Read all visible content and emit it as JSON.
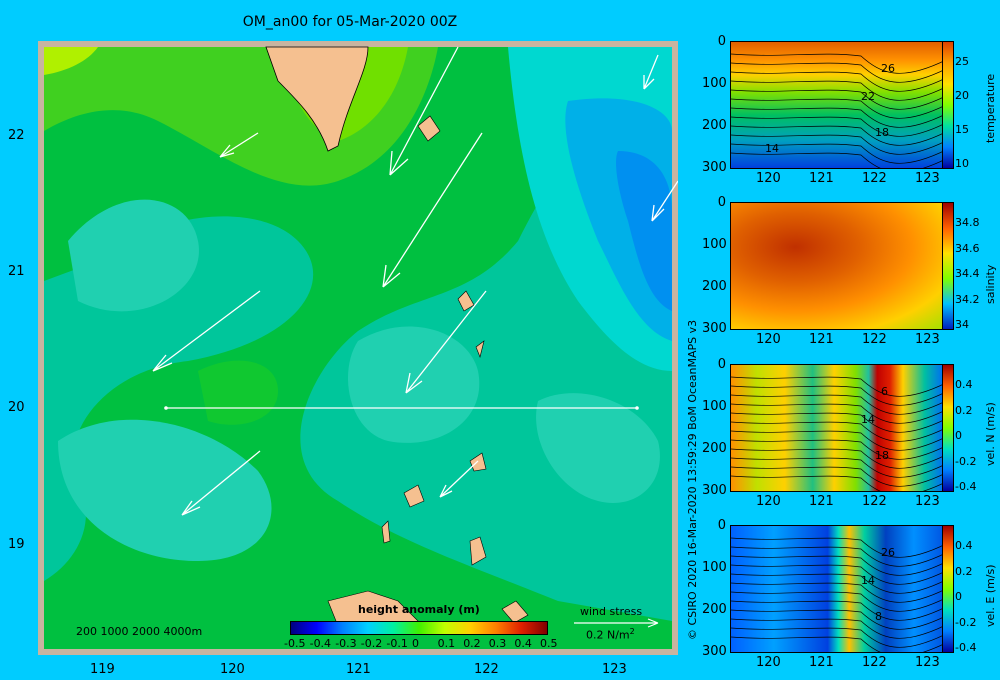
{
  "title": "OM_an00 for 05-Mar-2020 00Z",
  "map": {
    "lat_ticks": [
      "22",
      "21",
      "20",
      "19"
    ],
    "lon_ticks": [
      "119",
      "120",
      "121",
      "122",
      "123"
    ],
    "depth_legend": "200  1000  2000  4000m",
    "colorbar_title": "height anomaly  (m)",
    "colorbar_ticks": [
      "-0.5",
      "-0.4",
      "-0.3",
      "-0.2",
      "-0.1",
      "0",
      "0.1",
      "0.2",
      "0.3",
      "0.4",
      "0.5"
    ],
    "wind_label": "wind stress",
    "wind_unit": "0.2 N/m",
    "wind_unit_sup": "2",
    "section_line": {
      "lat": 20,
      "lon_start": 119.5,
      "lon_end": 123.2
    }
  },
  "sections": [
    {
      "id": "temperature",
      "label": "temperature",
      "y_ticks": [
        "0",
        "100",
        "200",
        "300"
      ],
      "x_ticks": [
        "120",
        "121",
        "122",
        "123"
      ],
      "cbar_ticks": [
        "25",
        "20",
        "15",
        "10"
      ],
      "contour_labels": [
        "26",
        "22",
        "18",
        "14"
      ]
    },
    {
      "id": "salinity",
      "label": "salinity",
      "y_ticks": [
        "0",
        "100",
        "200",
        "300"
      ],
      "x_ticks": [
        "120",
        "121",
        "122",
        "123"
      ],
      "cbar_ticks": [
        "34.8",
        "34.6",
        "34.4",
        "34.2",
        "34"
      ],
      "contour_labels": []
    },
    {
      "id": "vel-n",
      "label": "vel. N  (m/s)",
      "y_ticks": [
        "0",
        "100",
        "200",
        "300"
      ],
      "x_ticks": [
        "120",
        "121",
        "122",
        "123"
      ],
      "cbar_ticks": [
        "0.4",
        "0.2",
        "0",
        "-0.2",
        "-0.4"
      ],
      "contour_labels": [
        "6",
        "14",
        "18"
      ]
    },
    {
      "id": "vel-e",
      "label": "vel. E  (m/s)",
      "y_ticks": [
        "0",
        "100",
        "200",
        "300"
      ],
      "x_ticks": [
        "120",
        "121",
        "122",
        "123"
      ],
      "cbar_ticks": [
        "0.4",
        "0.2",
        "0",
        "-0.2",
        "-0.4"
      ],
      "contour_labels": [
        "26",
        "14",
        "8"
      ]
    }
  ],
  "credit": "© CSIRO 2020   16-Mar-2020 13:59:29 BoM OceanMAPS v3"
}
